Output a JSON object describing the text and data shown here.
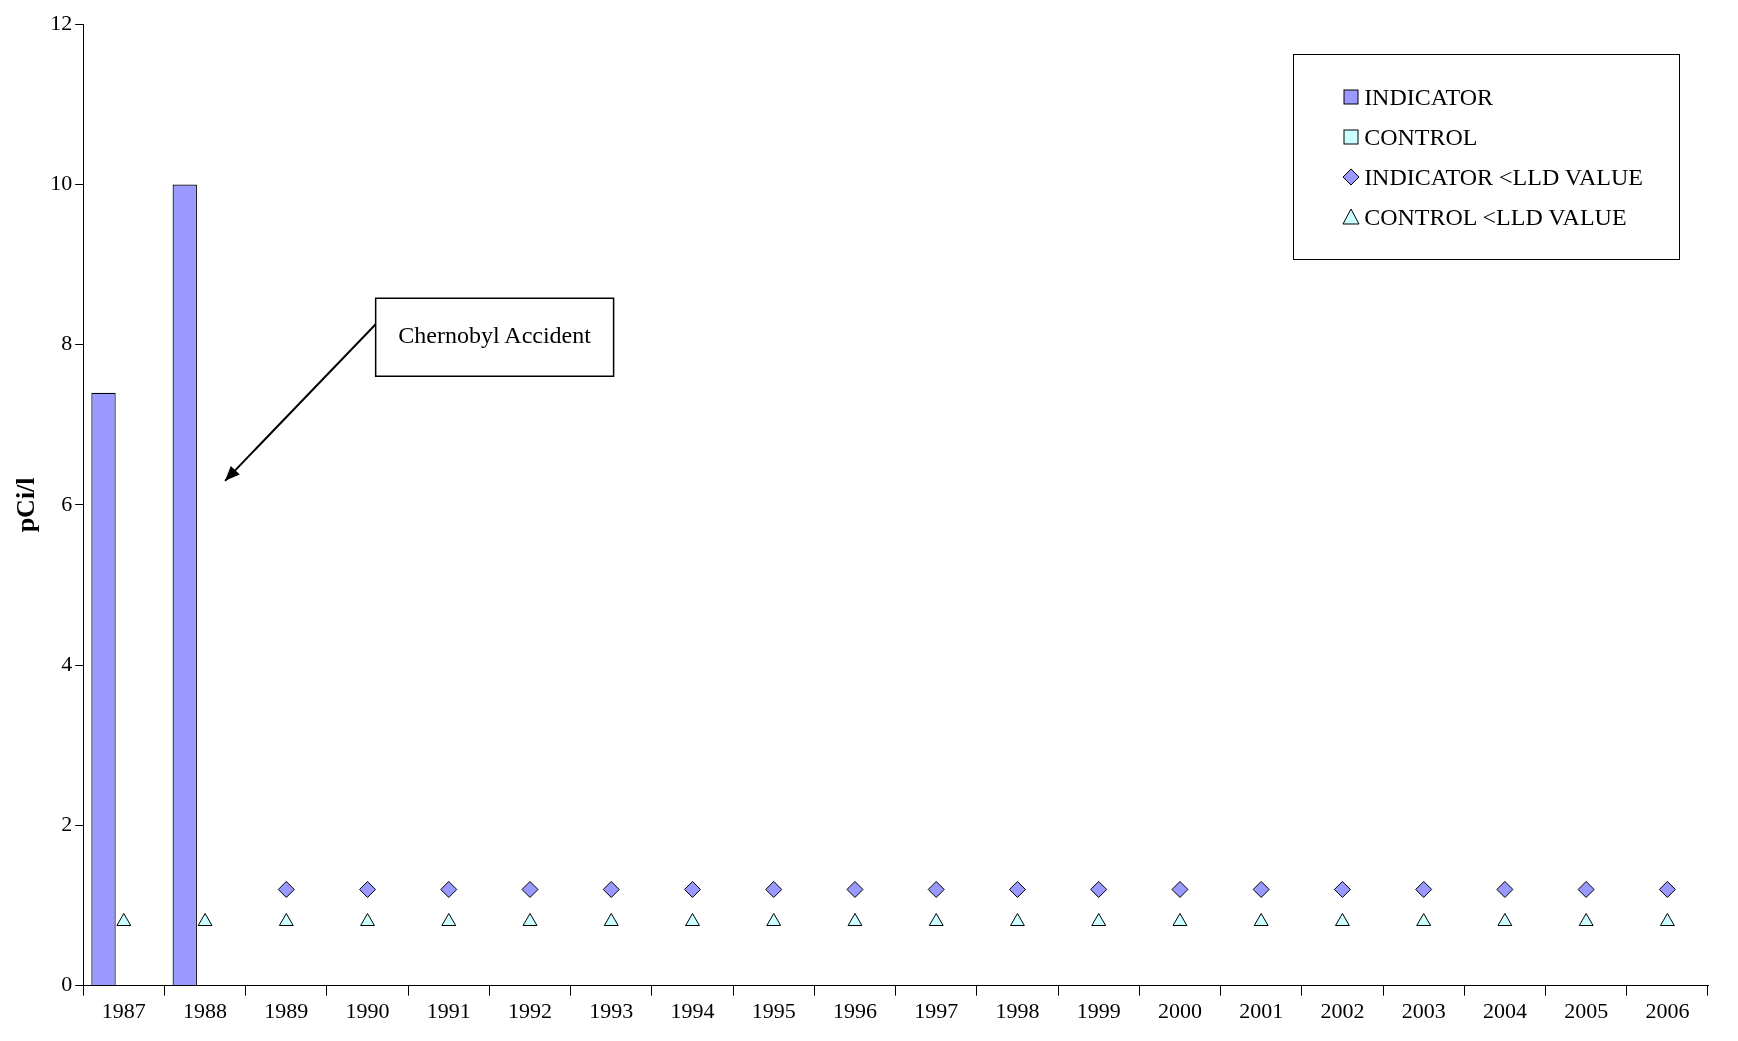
{
  "chart_data": {
    "type": "bar",
    "ylabel": "pCi/l",
    "categories": [
      "1987",
      "1988",
      "1989",
      "1990",
      "1991",
      "1992",
      "1993",
      "1994",
      "1995",
      "1996",
      "1997",
      "1998",
      "1999",
      "2000",
      "2001",
      "2002",
      "2003",
      "2004",
      "2005",
      "2006"
    ],
    "series": [
      {
        "name": "INDICATOR",
        "color": "#9999ff",
        "values": [
          7.4,
          10,
          null,
          null,
          null,
          null,
          null,
          null,
          null,
          null,
          null,
          null,
          null,
          null,
          null,
          null,
          null,
          null,
          null,
          null
        ]
      },
      {
        "name": "CONTROL",
        "color": "#ccffff",
        "values": [
          null,
          null,
          null,
          null,
          null,
          null,
          null,
          null,
          null,
          null,
          null,
          null,
          null,
          null,
          null,
          null,
          null,
          null,
          null,
          null
        ]
      },
      {
        "name": "INDICATOR <LLD VALUE",
        "type": "scatter",
        "marker": "diamond",
        "color": "#9999ff",
        "values": [
          null,
          null,
          1.2,
          1.2,
          1.2,
          1.2,
          1.2,
          1.2,
          1.2,
          1.2,
          1.2,
          1.2,
          1.2,
          1.2,
          1.2,
          1.2,
          1.2,
          1.2,
          1.2,
          1.2
        ]
      },
      {
        "name": "CONTROL <LLD VALUE",
        "type": "scatter",
        "marker": "triangle",
        "color": "#ccffff",
        "values": [
          0.8,
          0.8,
          0.8,
          0.8,
          0.8,
          0.8,
          0.8,
          0.8,
          0.8,
          0.8,
          0.8,
          0.8,
          0.8,
          0.8,
          0.8,
          0.8,
          0.8,
          0.8,
          0.8,
          0.8
        ]
      }
    ],
    "ylim": [
      0,
      12
    ],
    "yticks": [
      0,
      2,
      4,
      6,
      8,
      10,
      12
    ],
    "grid": false,
    "legend": "top right",
    "annotations": [
      "Chernobyl Accident"
    ]
  }
}
